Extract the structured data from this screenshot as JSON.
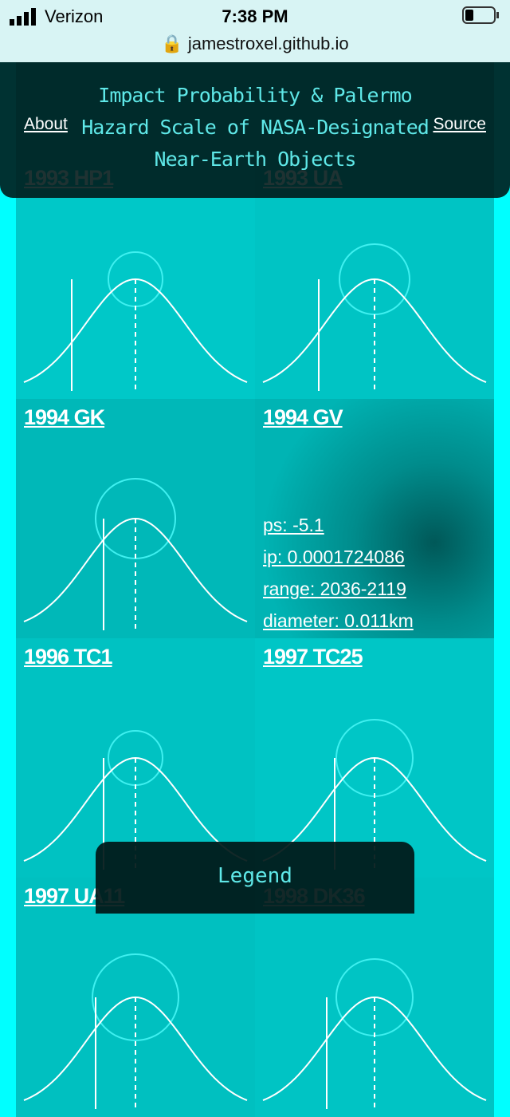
{
  "status_bar": {
    "carrier": "Verizon",
    "time": "7:38 PM",
    "url": "jamestroxel.github.io"
  },
  "header": {
    "title": "Impact Probability & Palermo Hazard Scale of NASA-Designated Near-Earth Objects",
    "about": "About",
    "source": "Source"
  },
  "cards": [
    {
      "name": "1993 HP1"
    },
    {
      "name": "1993 UA"
    },
    {
      "name": "1994 GK"
    },
    {
      "name": "1994 GV",
      "details": [
        "ps: -5.1",
        "ip: 0.0001724086",
        "range: 2036-2119",
        "diameter: 0.011km"
      ]
    },
    {
      "name": "1996 TC1"
    },
    {
      "name": "1997 TC25"
    },
    {
      "name": "1997 UA11"
    },
    {
      "name": "1998 DK36"
    }
  ],
  "legend": "Legend"
}
